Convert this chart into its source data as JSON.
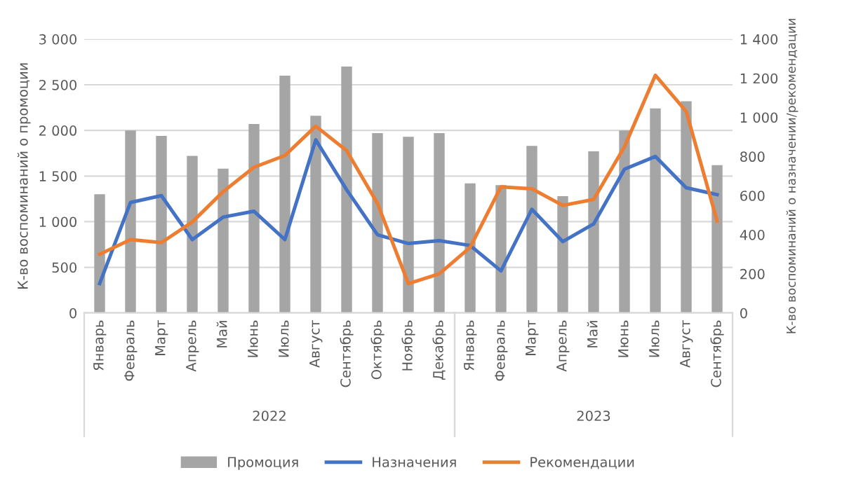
{
  "chart_data": {
    "type": "bar",
    "ylabel": "К-во воспоминаний о промоции",
    "y2label": "К-во воспоминаний о назначении/рекомендации",
    "categories": [
      "Январь",
      "Февраль",
      "Март",
      "Апрель",
      "Май",
      "Июнь",
      "Июль",
      "Август",
      "Сентябрь",
      "Октябрь",
      "Ноябрь",
      "Декабрь",
      "Январь",
      "Февраль",
      "Март",
      "Апрель",
      "Май",
      "Июнь",
      "Июль",
      "Август",
      "Сентябрь"
    ],
    "series": [
      {
        "name": "Промоция",
        "color": "#a5a5a5",
        "values": [
          1300,
          2000,
          1940,
          1720,
          1580,
          2070,
          2600,
          2160,
          2700,
          1970,
          1930,
          1970,
          1420,
          1400,
          1830,
          1280,
          1770,
          2000,
          2240,
          2320,
          1620
        ]
      },
      {
        "name": "Назначения",
        "type": "line",
        "axis": "y2",
        "color": "#4472c4",
        "values": [
          150,
          565,
          600,
          375,
          490,
          520,
          375,
          885,
          630,
          400,
          355,
          370,
          345,
          215,
          530,
          365,
          455,
          735,
          800,
          640,
          605
        ]
      },
      {
        "name": "Рекомендации",
        "type": "line",
        "axis": "y2",
        "color": "#ed7d31",
        "values": [
          300,
          375,
          360,
          465,
          620,
          745,
          805,
          955,
          830,
          560,
          150,
          200,
          335,
          645,
          635,
          550,
          580,
          850,
          1215,
          1030,
          470
        ]
      }
    ],
    "ylim": [
      0,
      3000
    ],
    "yticks": [
      {
        "value": 0,
        "label": "0"
      },
      {
        "value": 500,
        "label": "500"
      },
      {
        "value": 1000,
        "label": "1 000"
      },
      {
        "value": 1500,
        "label": "1 500"
      },
      {
        "value": 2000,
        "label": "2 000"
      },
      {
        "value": 2500,
        "label": "2 500"
      },
      {
        "value": 3000,
        "label": "3 000"
      }
    ],
    "y2lim": [
      0,
      1400
    ],
    "y2ticks": [
      {
        "value": 0,
        "label": "0"
      },
      {
        "value": 200,
        "label": "200"
      },
      {
        "value": 400,
        "label": "400"
      },
      {
        "value": 600,
        "label": "600"
      },
      {
        "value": 800,
        "label": "800"
      },
      {
        "value": 1000,
        "label": "1 000"
      },
      {
        "value": 1200,
        "label": "1 200"
      },
      {
        "value": 1400,
        "label": "1 400"
      }
    ],
    "annotations": [
      "2022",
      "2023"
    ],
    "grid": "y",
    "legend": "bottom"
  }
}
